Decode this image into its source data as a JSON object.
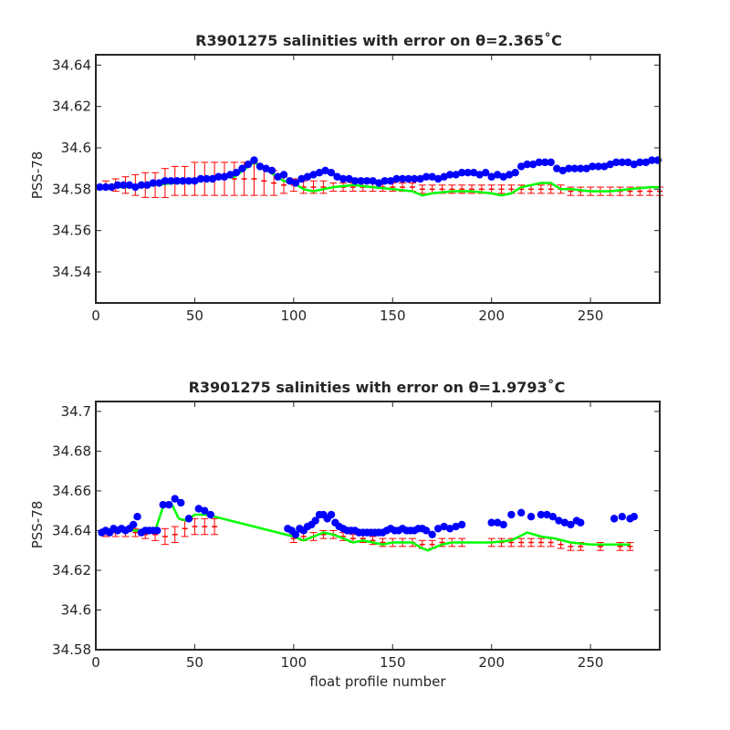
{
  "figure": {
    "xlabel": "float profile number"
  },
  "colors": {
    "map_salinity": "#ff0000",
    "float_salinity": "#0000ff",
    "calibrated_salinity": "#00ff00",
    "axes": "#262626"
  },
  "chart_data": [
    {
      "type": "scatter",
      "title": "R3901275 salinities with error on θ=2.365˚C",
      "ylabel": "PSS-78",
      "xlabel": "",
      "xlim": [
        0,
        285
      ],
      "ylim": [
        34.525,
        34.645
      ],
      "xticks": [
        "0",
        "50",
        "100",
        "150",
        "200",
        "250"
      ],
      "yticks": [
        "34.54",
        "34.56",
        "34.58",
        "34.6",
        "34.62",
        "34.64"
      ],
      "grid": false,
      "series": [
        {
          "kind": "errorbar",
          "color": "#ff0000",
          "x": [
            5,
            10,
            15,
            20,
            25,
            30,
            35,
            40,
            45,
            50,
            55,
            60,
            65,
            70,
            75,
            80,
            85,
            90,
            95,
            100,
            105,
            110,
            115,
            120,
            125,
            130,
            135,
            140,
            145,
            150,
            155,
            160,
            165,
            170,
            175,
            180,
            185,
            190,
            195,
            200,
            205,
            210,
            215,
            220,
            225,
            230,
            235,
            240,
            245,
            250,
            255,
            260,
            265,
            270,
            275,
            280,
            285
          ],
          "y": [
            34.582,
            34.582,
            34.582,
            34.582,
            34.582,
            34.582,
            34.583,
            34.584,
            34.584,
            34.585,
            34.585,
            34.585,
            34.585,
            34.585,
            34.585,
            34.585,
            34.584,
            34.583,
            34.582,
            34.582,
            34.581,
            34.581,
            34.581,
            34.581,
            34.581,
            34.581,
            34.581,
            34.581,
            34.581,
            34.581,
            34.581,
            34.581,
            34.58,
            34.58,
            34.58,
            34.58,
            34.58,
            34.58,
            34.58,
            34.58,
            34.58,
            34.58,
            34.58,
            34.58,
            34.58,
            34.58,
            34.58,
            34.579,
            34.579,
            34.579,
            34.579,
            34.579,
            34.579,
            34.579,
            34.579,
            34.579,
            34.579
          ],
          "err": [
            0.002,
            0.003,
            0.004,
            0.005,
            0.006,
            0.006,
            0.007,
            0.007,
            0.007,
            0.008,
            0.008,
            0.008,
            0.008,
            0.008,
            0.008,
            0.008,
            0.007,
            0.006,
            0.004,
            0.003,
            0.003,
            0.003,
            0.003,
            0.002,
            0.002,
            0.002,
            0.002,
            0.002,
            0.002,
            0.002,
            0.002,
            0.002,
            0.002,
            0.002,
            0.002,
            0.002,
            0.002,
            0.002,
            0.002,
            0.002,
            0.002,
            0.002,
            0.002,
            0.002,
            0.002,
            0.002,
            0.002,
            0.002,
            0.002,
            0.002,
            0.002,
            0.002,
            0.002,
            0.002,
            0.002,
            0.002,
            0.002
          ]
        },
        {
          "kind": "line",
          "color": "#00ff00",
          "x": [
            5,
            10,
            20,
            30,
            40,
            50,
            60,
            70,
            80,
            85,
            90,
            95,
            100,
            105,
            110,
            115,
            120,
            130,
            140,
            150,
            160,
            165,
            170,
            180,
            190,
            200,
            205,
            210,
            215,
            220,
            225,
            230,
            235,
            240,
            250,
            260,
            270,
            280,
            285
          ],
          "y": [
            34.581,
            34.581,
            34.581,
            34.582,
            34.583,
            34.584,
            34.585,
            34.586,
            34.593,
            34.59,
            34.587,
            34.584,
            34.583,
            34.58,
            34.579,
            34.58,
            34.581,
            34.582,
            34.581,
            34.58,
            34.579,
            34.577,
            34.578,
            34.579,
            34.579,
            34.578,
            34.577,
            34.578,
            34.581,
            34.582,
            34.583,
            34.583,
            34.58,
            34.58,
            34.579,
            34.579,
            34.58,
            34.581,
            34.581
          ]
        },
        {
          "kind": "points",
          "color": "#0000ff",
          "x": [
            2,
            5,
            8,
            11,
            14,
            17,
            20,
            23,
            26,
            29,
            32,
            35,
            38,
            41,
            44,
            47,
            50,
            53,
            56,
            59,
            62,
            65,
            68,
            71,
            74,
            77,
            80,
            83,
            86,
            89,
            92,
            95,
            98,
            101,
            104,
            107,
            110,
            113,
            116,
            119,
            122,
            125,
            128,
            131,
            134,
            137,
            140,
            143,
            146,
            149,
            152,
            155,
            158,
            161,
            164,
            167,
            170,
            173,
            176,
            179,
            182,
            185,
            188,
            191,
            194,
            197,
            200,
            203,
            206,
            209,
            212,
            215,
            218,
            221,
            224,
            227,
            230,
            233,
            236,
            239,
            242,
            245,
            248,
            251,
            254,
            257,
            260,
            263,
            266,
            269,
            272,
            275,
            278,
            281,
            284
          ],
          "y": [
            34.581,
            34.581,
            34.581,
            34.582,
            34.582,
            34.582,
            34.581,
            34.582,
            34.582,
            34.583,
            34.583,
            34.584,
            34.584,
            34.584,
            34.584,
            34.584,
            34.584,
            34.585,
            34.585,
            34.585,
            34.586,
            34.586,
            34.587,
            34.588,
            34.59,
            34.592,
            34.594,
            34.591,
            34.59,
            34.589,
            34.586,
            34.587,
            34.584,
            34.583,
            34.585,
            34.586,
            34.587,
            34.588,
            34.589,
            34.588,
            34.586,
            34.585,
            34.585,
            34.584,
            34.584,
            34.584,
            34.584,
            34.583,
            34.584,
            34.584,
            34.585,
            34.585,
            34.585,
            34.585,
            34.585,
            34.586,
            34.586,
            34.585,
            34.586,
            34.587,
            34.587,
            34.588,
            34.588,
            34.588,
            34.587,
            34.588,
            34.586,
            34.587,
            34.586,
            34.587,
            34.588,
            34.591,
            34.592,
            34.592,
            34.593,
            34.593,
            34.593,
            34.59,
            34.589,
            34.59,
            34.59,
            34.59,
            34.59,
            34.591,
            34.591,
            34.591,
            34.592,
            34.593,
            34.593,
            34.593,
            34.592,
            34.593,
            34.593,
            34.594,
            34.594
          ]
        }
      ]
    },
    {
      "type": "scatter",
      "title": "R3901275 salinities with error on θ=1.9793˚C",
      "ylabel": "PSS-78",
      "xlabel": "float profile number",
      "xlim": [
        0,
        285
      ],
      "ylim": [
        34.58,
        34.705
      ],
      "xticks": [
        "0",
        "50",
        "100",
        "150",
        "200",
        "250"
      ],
      "yticks": [
        "34.58",
        "34.6",
        "34.62",
        "34.64",
        "34.66",
        "34.68",
        "34.7"
      ],
      "grid": false,
      "series": [
        {
          "kind": "errorbar",
          "color": "#ff0000",
          "x": [
            5,
            10,
            15,
            20,
            25,
            30,
            35,
            40,
            45,
            50,
            55,
            60,
            100,
            105,
            110,
            115,
            120,
            125,
            130,
            135,
            140,
            145,
            150,
            155,
            160,
            165,
            170,
            175,
            180,
            185,
            200,
            205,
            210,
            215,
            220,
            225,
            230,
            235,
            240,
            245,
            255,
            265,
            270
          ],
          "y": [
            34.639,
            34.639,
            34.639,
            34.639,
            34.638,
            34.638,
            34.637,
            34.638,
            34.641,
            34.642,
            34.642,
            34.642,
            34.636,
            34.637,
            34.637,
            34.638,
            34.638,
            34.637,
            34.636,
            34.636,
            34.635,
            34.634,
            34.634,
            34.634,
            34.634,
            34.633,
            34.633,
            34.634,
            34.634,
            34.634,
            34.634,
            34.634,
            34.634,
            34.634,
            34.634,
            34.634,
            34.634,
            34.633,
            34.632,
            34.632,
            34.632,
            34.632,
            34.632
          ],
          "err": [
            0.002,
            0.002,
            0.002,
            0.002,
            0.002,
            0.003,
            0.004,
            0.004,
            0.004,
            0.004,
            0.004,
            0.004,
            0.002,
            0.002,
            0.002,
            0.002,
            0.002,
            0.002,
            0.002,
            0.002,
            0.002,
            0.002,
            0.002,
            0.002,
            0.002,
            0.002,
            0.002,
            0.002,
            0.002,
            0.002,
            0.002,
            0.002,
            0.002,
            0.002,
            0.002,
            0.002,
            0.002,
            0.002,
            0.002,
            0.002,
            0.002,
            0.002,
            0.002
          ]
        },
        {
          "kind": "line",
          "color": "#00ff00",
          "x": [
            3,
            10,
            20,
            30,
            34,
            38,
            42,
            46,
            50,
            55,
            60,
            100,
            105,
            110,
            115,
            120,
            125,
            130,
            135,
            140,
            145,
            150,
            155,
            160,
            165,
            168,
            170,
            175,
            180,
            185,
            200,
            210,
            218,
            225,
            232,
            240,
            250,
            260,
            270
          ],
          "y": [
            34.64,
            34.641,
            34.64,
            34.64,
            34.652,
            34.654,
            34.646,
            34.645,
            34.648,
            34.648,
            34.647,
            34.637,
            34.635,
            34.637,
            34.639,
            34.638,
            34.636,
            34.634,
            34.635,
            34.634,
            34.633,
            34.634,
            34.634,
            34.634,
            34.631,
            34.63,
            34.631,
            34.633,
            34.634,
            34.634,
            34.634,
            34.635,
            34.639,
            34.637,
            34.636,
            34.634,
            34.633,
            34.633,
            34.633
          ]
        },
        {
          "kind": "points",
          "color": "#0000ff",
          "x": [
            3,
            5,
            7,
            9,
            11,
            13,
            15,
            17,
            19,
            21,
            23,
            25,
            27,
            29,
            31,
            34,
            37,
            40,
            43,
            47,
            52,
            55,
            58,
            97,
            99,
            101,
            103,
            105,
            107,
            109,
            111,
            113,
            115,
            117,
            119,
            121,
            123,
            125,
            127,
            129,
            131,
            133,
            135,
            137,
            139,
            141,
            143,
            145,
            147,
            149,
            151,
            153,
            155,
            157,
            159,
            161,
            163,
            165,
            167,
            170,
            173,
            176,
            179,
            182,
            185,
            200,
            203,
            206,
            210,
            215,
            220,
            225,
            228,
            231,
            234,
            237,
            240,
            243,
            245,
            262,
            266,
            270,
            272
          ],
          "y": [
            34.639,
            34.64,
            34.639,
            34.641,
            34.64,
            34.641,
            34.64,
            34.641,
            34.643,
            34.647,
            34.639,
            34.64,
            34.64,
            34.64,
            34.64,
            34.653,
            34.653,
            34.656,
            34.654,
            34.646,
            34.651,
            34.65,
            34.648,
            34.641,
            34.64,
            34.638,
            34.641,
            34.64,
            34.642,
            34.643,
            34.645,
            34.648,
            34.648,
            34.646,
            34.648,
            34.644,
            34.642,
            34.641,
            34.64,
            34.64,
            34.64,
            34.639,
            34.639,
            34.639,
            34.639,
            34.639,
            34.639,
            34.639,
            34.64,
            34.641,
            34.64,
            34.64,
            34.641,
            34.64,
            34.64,
            34.64,
            34.641,
            34.641,
            34.64,
            34.638,
            34.641,
            34.642,
            34.641,
            34.642,
            34.643,
            34.644,
            34.644,
            34.643,
            34.648,
            34.649,
            34.647,
            34.648,
            34.648,
            34.647,
            34.645,
            34.644,
            34.643,
            34.645,
            34.644,
            34.646,
            34.647,
            34.646,
            34.647
          ]
        }
      ]
    }
  ]
}
